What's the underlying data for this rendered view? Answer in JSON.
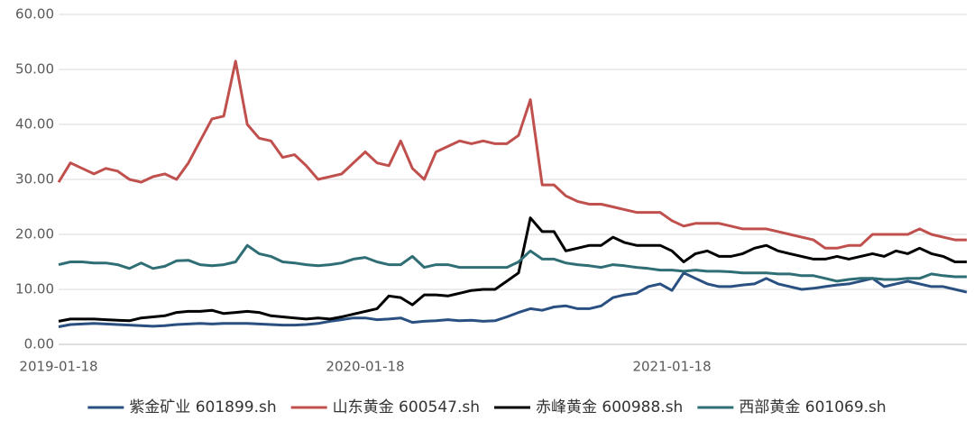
{
  "chart_data": {
    "type": "line",
    "categories": [
      "2019-01-18",
      null,
      null,
      null,
      null,
      null,
      null,
      null,
      null,
      null,
      null,
      null,
      null,
      null,
      null,
      null,
      null,
      null,
      null,
      null,
      null,
      null,
      null,
      null,
      null,
      null,
      "2020-01-18",
      null,
      null,
      null,
      null,
      null,
      null,
      null,
      null,
      null,
      null,
      null,
      null,
      null,
      null,
      null,
      null,
      null,
      null,
      null,
      null,
      null,
      null,
      null,
      null,
      null,
      "2021-01-18",
      null,
      null,
      null,
      null,
      null,
      null,
      null,
      null,
      null,
      null,
      null,
      null,
      null,
      null,
      null,
      null,
      null,
      null,
      null,
      null,
      null,
      null,
      null,
      null,
      null
    ],
    "ylim": [
      0,
      60
    ],
    "yticks": [
      {
        "value": 0,
        "label": "0.00"
      },
      {
        "value": 10,
        "label": "10.00"
      },
      {
        "value": 20,
        "label": "20.00"
      },
      {
        "value": 30,
        "label": "30.00"
      },
      {
        "value": 40,
        "label": "40.00"
      },
      {
        "value": 50,
        "label": "50.00"
      },
      {
        "value": 60,
        "label": "60.00"
      }
    ],
    "grid": true,
    "legend": "bottom",
    "series": [
      {
        "name": "紫金矿业 601899.sh",
        "color": "#2a5082",
        "values": [
          3.2,
          3.6,
          3.7,
          3.8,
          3.7,
          3.6,
          3.5,
          3.4,
          3.3,
          3.4,
          3.6,
          3.7,
          3.8,
          3.7,
          3.8,
          3.8,
          3.8,
          3.7,
          3.6,
          3.5,
          3.5,
          3.6,
          3.8,
          4.2,
          4.5,
          4.8,
          4.8,
          4.5,
          4.6,
          4.8,
          4.0,
          4.2,
          4.3,
          4.5,
          4.3,
          4.4,
          4.2,
          4.3,
          5.0,
          5.8,
          6.5,
          6.2,
          6.8,
          7.0,
          6.5,
          6.5,
          7.0,
          8.5,
          9.0,
          9.3,
          10.5,
          11.0,
          9.8,
          13.0,
          12.0,
          11.0,
          10.5,
          10.5,
          10.8,
          11.0,
          12.0,
          11.0,
          10.5,
          10.0,
          10.2,
          10.5,
          10.8,
          11.0,
          11.5,
          12.0,
          10.5,
          11.0,
          11.5,
          11.0,
          10.5,
          10.5,
          10.0,
          9.5
        ]
      },
      {
        "name": "山东黄金 600547.sh",
        "color": "#c0504d",
        "values": [
          29.5,
          33,
          32,
          31,
          32,
          31.5,
          30,
          29.5,
          30.5,
          31,
          30,
          33,
          37,
          41,
          41.5,
          51.5,
          40,
          37.5,
          37,
          34,
          34.5,
          32.5,
          30,
          30.5,
          31,
          33,
          35,
          33,
          32.5,
          37,
          32,
          30,
          35,
          36,
          37,
          36.5,
          37,
          36.5,
          36.5,
          38,
          44.5,
          29,
          29,
          27,
          26,
          25.5,
          25.5,
          25,
          24.5,
          24,
          24,
          24,
          22.5,
          21.5,
          22,
          22,
          22,
          21.5,
          21,
          21,
          21,
          20.5,
          20,
          19.5,
          19,
          17.5,
          17.5,
          18,
          18,
          20,
          20,
          20,
          20,
          21,
          20,
          19.5,
          19,
          19
        ]
      },
      {
        "name": "赤峰黄金 600988.sh",
        "color": "#000000",
        "values": [
          4.2,
          4.6,
          4.6,
          4.6,
          4.5,
          4.4,
          4.3,
          4.8,
          5.0,
          5.2,
          5.8,
          6.0,
          6.0,
          6.2,
          5.6,
          5.8,
          6.0,
          5.8,
          5.2,
          5.0,
          4.8,
          4.6,
          4.8,
          4.6,
          5.0,
          5.5,
          6.0,
          6.5,
          8.8,
          8.5,
          7.2,
          9.0,
          9.0,
          8.8,
          9.3,
          9.8,
          10.0,
          10.0,
          11.5,
          13.0,
          23.0,
          20.5,
          20.5,
          17.0,
          17.5,
          18.0,
          18.0,
          19.5,
          18.5,
          18.0,
          18.0,
          18.0,
          17.0,
          15.0,
          16.5,
          17.0,
          16.0,
          16.0,
          16.5,
          17.5,
          18.0,
          17.0,
          16.5,
          16.0,
          15.5,
          15.5,
          16.0,
          15.5,
          16.0,
          16.5,
          16.0,
          17.0,
          16.5,
          17.5,
          16.5,
          16.0,
          15.0,
          15.0
        ]
      },
      {
        "name": "西部黄金 601069.sh",
        "color": "#2f6e75",
        "values": [
          14.5,
          15.0,
          15.0,
          14.8,
          14.8,
          14.5,
          13.8,
          14.8,
          13.8,
          14.2,
          15.2,
          15.3,
          14.5,
          14.3,
          14.5,
          15.0,
          18.0,
          16.5,
          16.0,
          15.0,
          14.8,
          14.5,
          14.3,
          14.5,
          14.8,
          15.5,
          15.8,
          15.0,
          14.5,
          14.5,
          16.0,
          14.0,
          14.5,
          14.5,
          14.0,
          14.0,
          14.0,
          14.0,
          14.0,
          15.0,
          17.0,
          15.5,
          15.5,
          14.8,
          14.5,
          14.3,
          14.0,
          14.5,
          14.3,
          14.0,
          13.8,
          13.5,
          13.5,
          13.3,
          13.5,
          13.3,
          13.3,
          13.2,
          13.0,
          13.0,
          13.0,
          12.8,
          12.8,
          12.5,
          12.5,
          12.0,
          11.5,
          11.8,
          12.0,
          12.0,
          11.8,
          11.8,
          12.0,
          12.0,
          12.8,
          12.5,
          12.3,
          12.3
        ]
      }
    ]
  }
}
